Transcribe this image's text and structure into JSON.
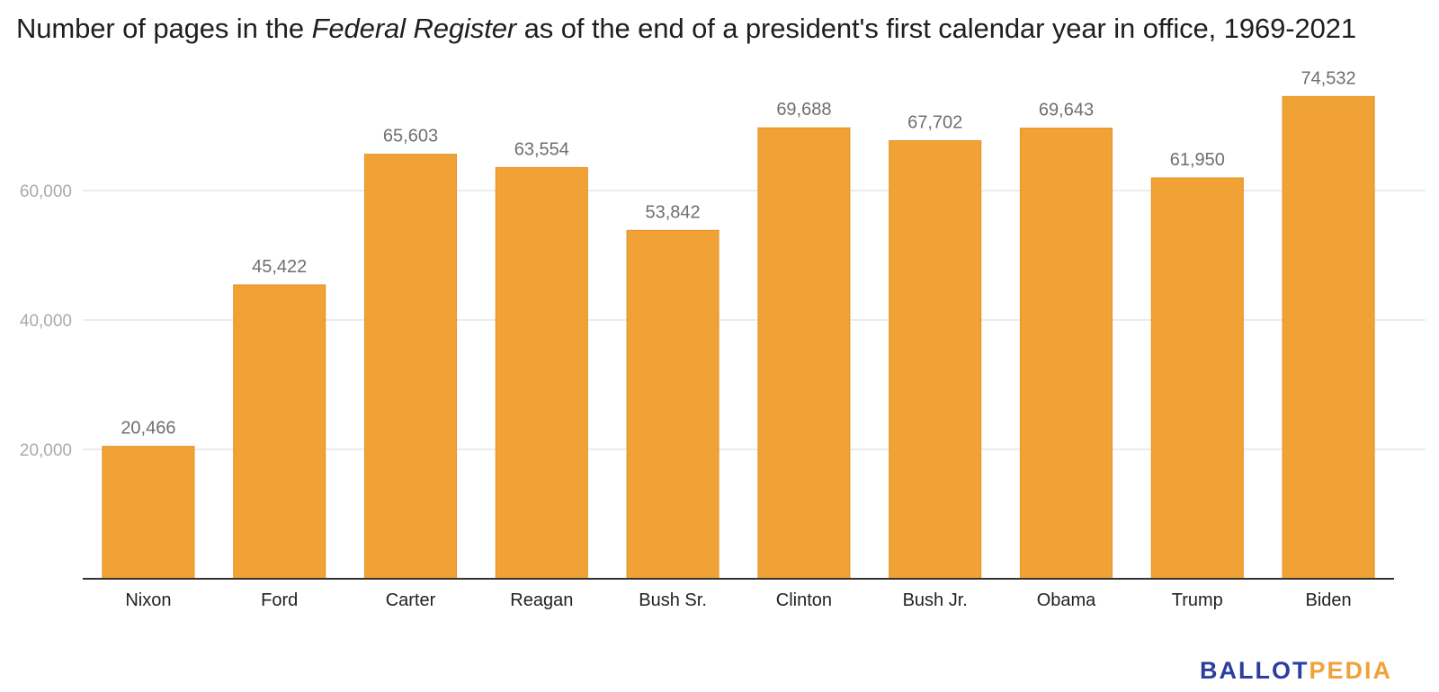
{
  "title": {
    "prefix": "Number of pages in the ",
    "emphasis": "Federal Register",
    "suffix": " as of the end of a president's first calendar year in office, 1969-2021"
  },
  "brand": {
    "part1": "BALLOT",
    "part2": "PEDIA"
  },
  "colors": {
    "bar": "#f0a237",
    "bar_edge": "#e39323",
    "grid": "#e6e6e6",
    "axis": "#333333",
    "tick_label": "#aaaaaa",
    "value_label": "#6f6f6f",
    "category_label": "#222222"
  },
  "chart_data": {
    "type": "bar",
    "categories": [
      "Nixon",
      "Ford",
      "Carter",
      "Reagan",
      "Bush Sr.",
      "Clinton",
      "Bush Jr.",
      "Obama",
      "Trump",
      "Biden"
    ],
    "values": [
      20466,
      45422,
      65603,
      63554,
      53842,
      69688,
      67702,
      69643,
      61950,
      74532
    ],
    "value_labels": [
      "20,466",
      "45,422",
      "65,603",
      "63,554",
      "53,842",
      "69,688",
      "67,702",
      "69,643",
      "61,950",
      "74,532"
    ],
    "yticks": [
      20000,
      40000,
      60000
    ],
    "ytick_labels": [
      "20,000",
      "40,000",
      "60,000"
    ],
    "ylim": [
      0,
      80000
    ],
    "xlabel": "",
    "ylabel": "",
    "grid": true,
    "legend": false
  }
}
